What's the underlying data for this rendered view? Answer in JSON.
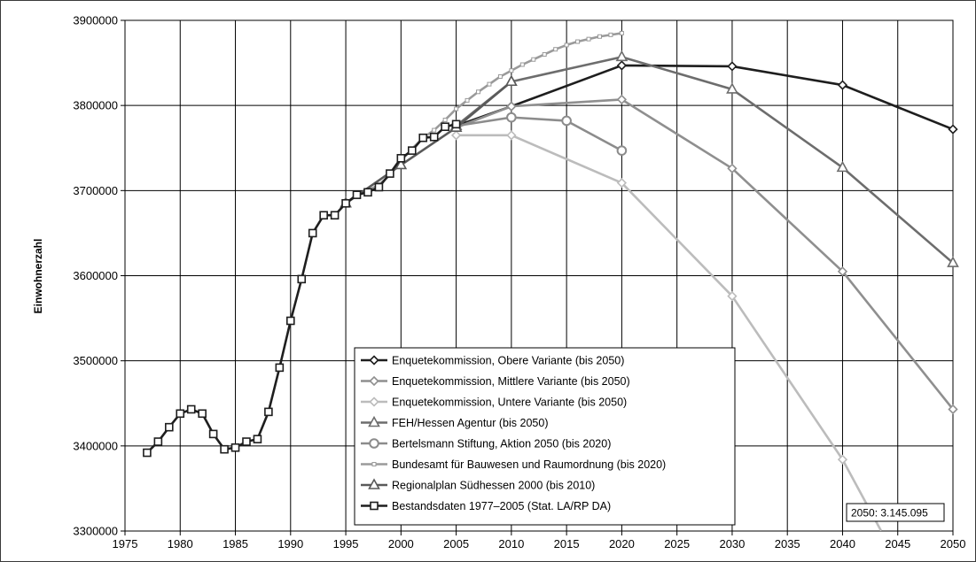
{
  "chart_data": {
    "type": "line",
    "ylabel": "Einwohnerzahl",
    "xlabel": "",
    "title": "",
    "xlim": [
      1975,
      2050
    ],
    "ylim": [
      3300000,
      3900000
    ],
    "x_ticks": [
      "1975",
      "1980",
      "1985",
      "1990",
      "1995",
      "2000",
      "2005",
      "2010",
      "2015",
      "2020",
      "2025",
      "2030",
      "2035",
      "2040",
      "2045",
      "2050"
    ],
    "y_ticks": [
      "3300000",
      "3400000",
      "3500000",
      "3600000",
      "3700000",
      "3800000",
      "3900000"
    ],
    "grid": true,
    "legend_position": "center-bottom",
    "annotation": "2050: 3.145.095",
    "series": [
      {
        "name": "Enquetekommission, Obere Variante (bis 2050)",
        "color": "#1e1e1e",
        "marker": "diamond",
        "width": 2.6,
        "points": [
          [
            2005,
            3776000
          ],
          [
            2010,
            3799000
          ],
          [
            2020,
            3847000
          ],
          [
            2030,
            3846000
          ],
          [
            2040,
            3824000
          ],
          [
            2050,
            3772000
          ]
        ]
      },
      {
        "name": "Enquetekommission, Mittlere Variante (bis 2050)",
        "color": "#8f8f8f",
        "marker": "diamond",
        "width": 2.6,
        "points": [
          [
            2005,
            3774000
          ],
          [
            2010,
            3799000
          ],
          [
            2020,
            3807000
          ],
          [
            2030,
            3726000
          ],
          [
            2040,
            3605000
          ],
          [
            2050,
            3443000
          ]
        ]
      },
      {
        "name": "Enquetekommission, Untere Variante (bis 2050)",
        "color": "#bcbcbc",
        "marker": "diamond",
        "width": 2.6,
        "points": [
          [
            2005,
            3765000
          ],
          [
            2010,
            3765000
          ],
          [
            2020,
            3709000
          ],
          [
            2030,
            3576000
          ],
          [
            2040,
            3384000
          ],
          [
            2043.5,
            3300000
          ]
        ]
      },
      {
        "name": "FEH/Hessen Agentur (bis 2050)",
        "color": "#6d6d6d",
        "marker": "triangle",
        "width": 2.6,
        "points": [
          [
            2005,
            3776000
          ],
          [
            2010,
            3828000
          ],
          [
            2020,
            3857000
          ],
          [
            2030,
            3819000
          ],
          [
            2040,
            3727000
          ],
          [
            2050,
            3615000
          ]
        ]
      },
      {
        "name": "Bertelsmann Stiftung, Aktion 2050 (bis 2020)",
        "color": "#8c8c8c",
        "marker": "circle",
        "width": 2.6,
        "points": [
          [
            2005,
            3776000
          ],
          [
            2010,
            3786000
          ],
          [
            2015,
            3782000
          ],
          [
            2020,
            3747000
          ]
        ]
      },
      {
        "name": "Bundesamt für Bauwesen und Raumordnung (bis 2020)",
        "color": "#9a9a9a",
        "marker": "smallsquare",
        "width": 2.6,
        "points": [
          [
            1995,
            3685000
          ],
          [
            1996,
            3695000
          ],
          [
            1997,
            3700000
          ],
          [
            1998,
            3707000
          ],
          [
            1999,
            3718000
          ],
          [
            2000,
            3735000
          ],
          [
            2001,
            3749000
          ],
          [
            2002,
            3762000
          ],
          [
            2003,
            3771000
          ],
          [
            2004,
            3783000
          ],
          [
            2005,
            3796000
          ],
          [
            2006,
            3806000
          ],
          [
            2007,
            3816000
          ],
          [
            2008,
            3825000
          ],
          [
            2009,
            3834000
          ],
          [
            2010,
            3841000
          ],
          [
            2011,
            3848000
          ],
          [
            2012,
            3854000
          ],
          [
            2013,
            3860000
          ],
          [
            2014,
            3866000
          ],
          [
            2015,
            3871000
          ],
          [
            2016,
            3875000
          ],
          [
            2017,
            3878000
          ],
          [
            2018,
            3881000
          ],
          [
            2019,
            3883000
          ],
          [
            2020,
            3885000
          ]
        ]
      },
      {
        "name": "Regionalplan Südhessen 2000 (bis 2010)",
        "color": "#5a5a5a",
        "marker": "triangle",
        "width": 2.6,
        "points": [
          [
            1995,
            3685000
          ],
          [
            2000,
            3730000
          ],
          [
            2005,
            3774000
          ],
          [
            2010,
            3828000
          ]
        ]
      },
      {
        "name": "Bestandsdaten 1977–2005 (Stat. LA/RP DA)",
        "color": "#1e1e1e",
        "marker": "square",
        "width": 2.6,
        "points": [
          [
            1977,
            3392000
          ],
          [
            1978,
            3405000
          ],
          [
            1979,
            3422000
          ],
          [
            1980,
            3438000
          ],
          [
            1981,
            3443000
          ],
          [
            1982,
            3438000
          ],
          [
            1983,
            3414000
          ],
          [
            1984,
            3396000
          ],
          [
            1985,
            3398000
          ],
          [
            1986,
            3405000
          ],
          [
            1987,
            3408000
          ],
          [
            1988,
            3440000
          ],
          [
            1989,
            3492000
          ],
          [
            1990,
            3547000
          ],
          [
            1991,
            3596000
          ],
          [
            1992,
            3650000
          ],
          [
            1993,
            3671000
          ],
          [
            1994,
            3671000
          ],
          [
            1995,
            3685000
          ],
          [
            1996,
            3695000
          ],
          [
            1997,
            3698000
          ],
          [
            1998,
            3704000
          ],
          [
            1999,
            3720000
          ],
          [
            2000,
            3738000
          ],
          [
            2001,
            3747000
          ],
          [
            2002,
            3762000
          ],
          [
            2003,
            3763000
          ],
          [
            2004,
            3775000
          ],
          [
            2005,
            3778000
          ]
        ]
      }
    ]
  }
}
